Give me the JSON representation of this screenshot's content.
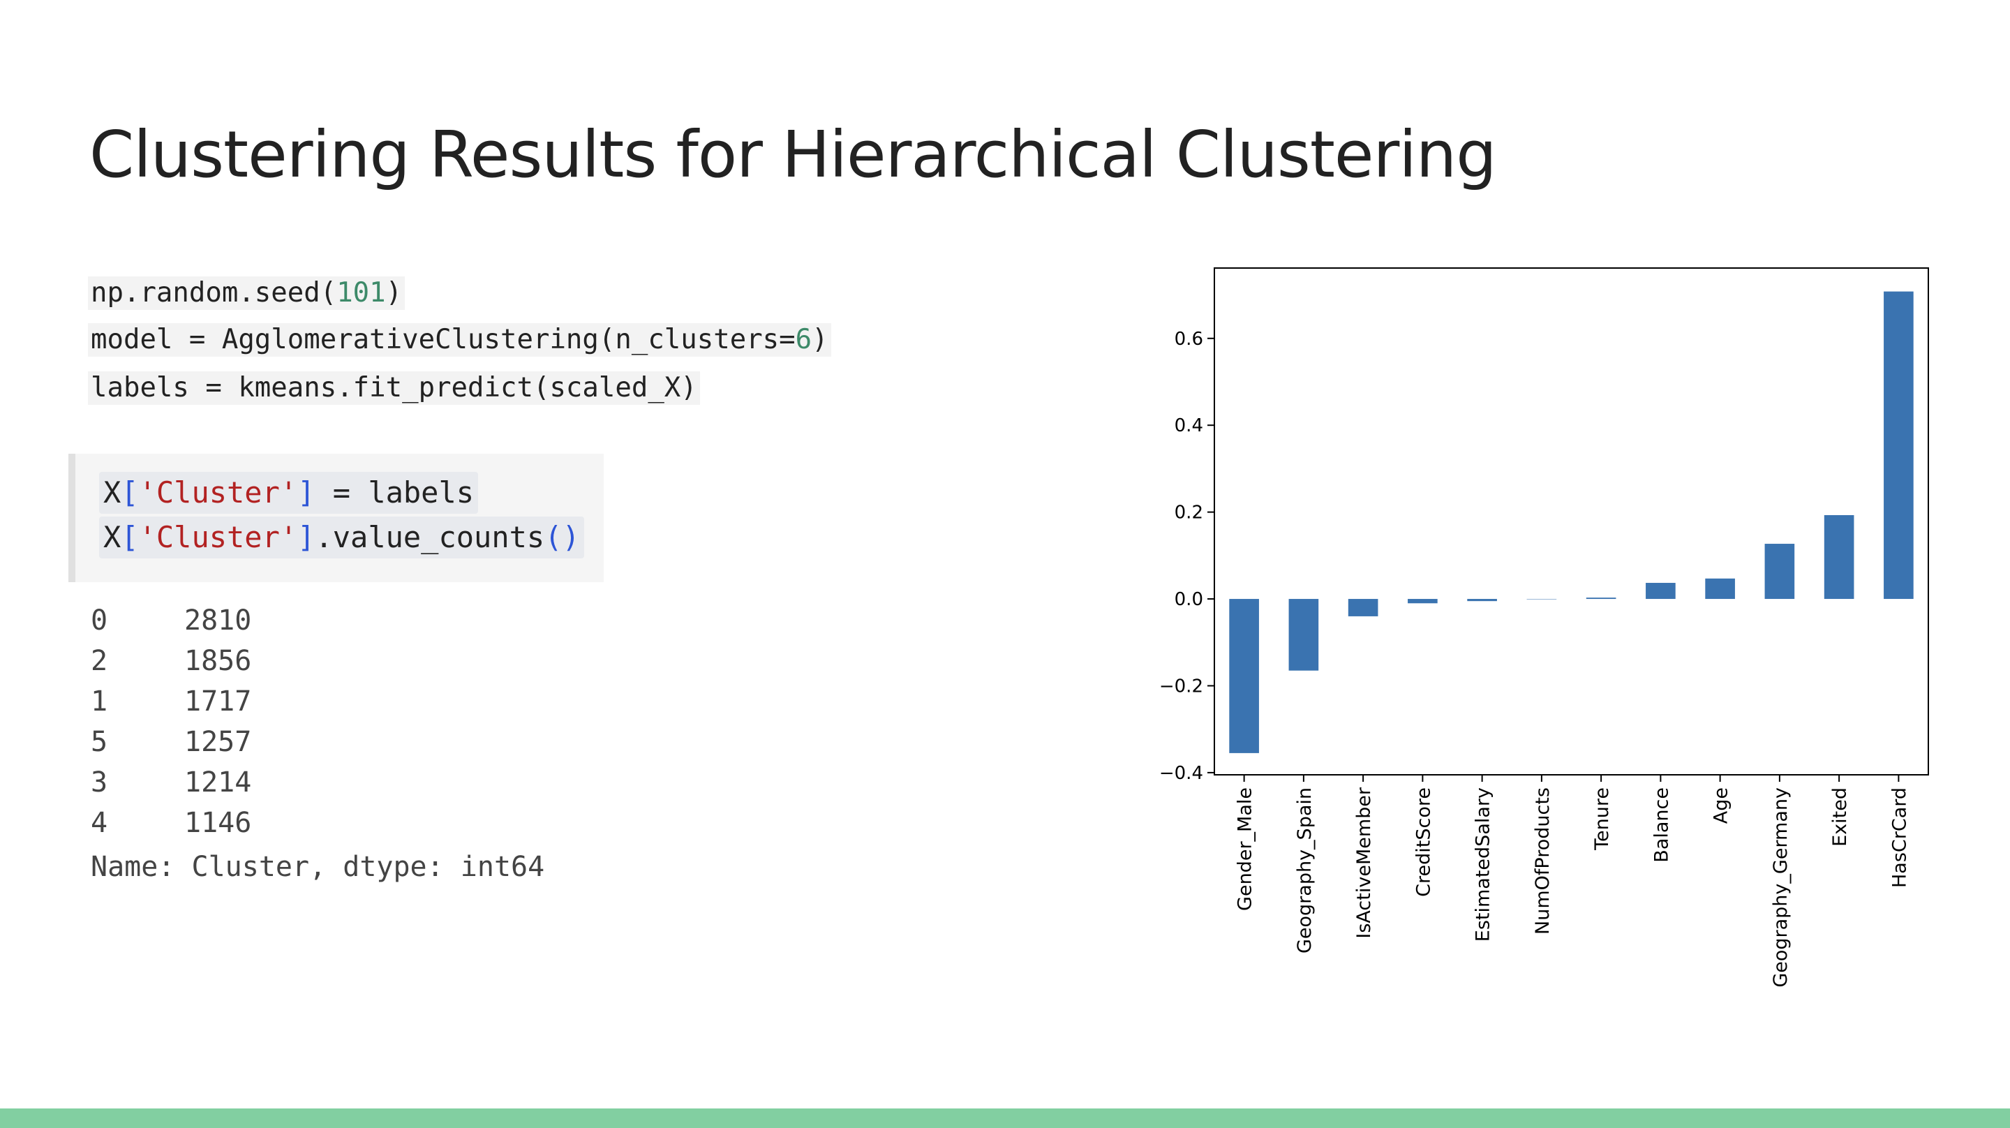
{
  "slide": {
    "title": "Clustering Results for Hierarchical Clustering"
  },
  "code": {
    "line1_pre": "np.random.seed(",
    "line1_num": "101",
    "line1_post": ")",
    "line2_pre": "model = AgglomerativeClustering(n_clusters=",
    "line2_num": "6",
    "line2_post": ")",
    "line3": "labels = kmeans.fit_predict(scaled_X)"
  },
  "notebook": {
    "cell_line1": {
      "var": "X",
      "open": "[",
      "str": "'Cluster'",
      "close": "]",
      "rest": " = labels"
    },
    "cell_line2": {
      "var": "X",
      "open": "[",
      "str": "'Cluster'",
      "close": "]",
      "method": ".value_counts",
      "parens": "()"
    },
    "output": {
      "rows": [
        {
          "index": "0",
          "count": "2810"
        },
        {
          "index": "2",
          "count": "1856"
        },
        {
          "index": "1",
          "count": "1717"
        },
        {
          "index": "5",
          "count": "1257"
        },
        {
          "index": "3",
          "count": "1214"
        },
        {
          "index": "4",
          "count": "1146"
        }
      ],
      "name_line": "Name: Cluster, dtype: int64"
    }
  },
  "chart_data": {
    "type": "bar",
    "categories": [
      "Gender_Male",
      "Geography_Spain",
      "IsActiveMember",
      "CreditScore",
      "EstimatedSalary",
      "NumOfProducts",
      "Tenure",
      "Balance",
      "Age",
      "Geography_Germany",
      "Exited",
      "HasCrCard"
    ],
    "values": [
      -0.355,
      -0.165,
      -0.04,
      -0.01,
      -0.005,
      0.0,
      0.003,
      0.037,
      0.047,
      0.127,
      0.193,
      0.708
    ],
    "ylim": [
      -0.405,
      0.762
    ],
    "yticks": [
      -0.4,
      -0.2,
      0.0,
      0.2,
      0.4,
      0.6
    ],
    "ytick_labels": [
      "−0.4",
      "−0.2",
      "0.0",
      "0.2",
      "0.4",
      "0.6"
    ],
    "bar_color": "#3a73b0",
    "title": "",
    "xlabel": "",
    "ylabel": "",
    "grid": false
  },
  "colors": {
    "footer": "#82cfa1",
    "number_literal": "#3d8a69",
    "string_literal": "#b22222",
    "bracket": "#2d55d6"
  }
}
